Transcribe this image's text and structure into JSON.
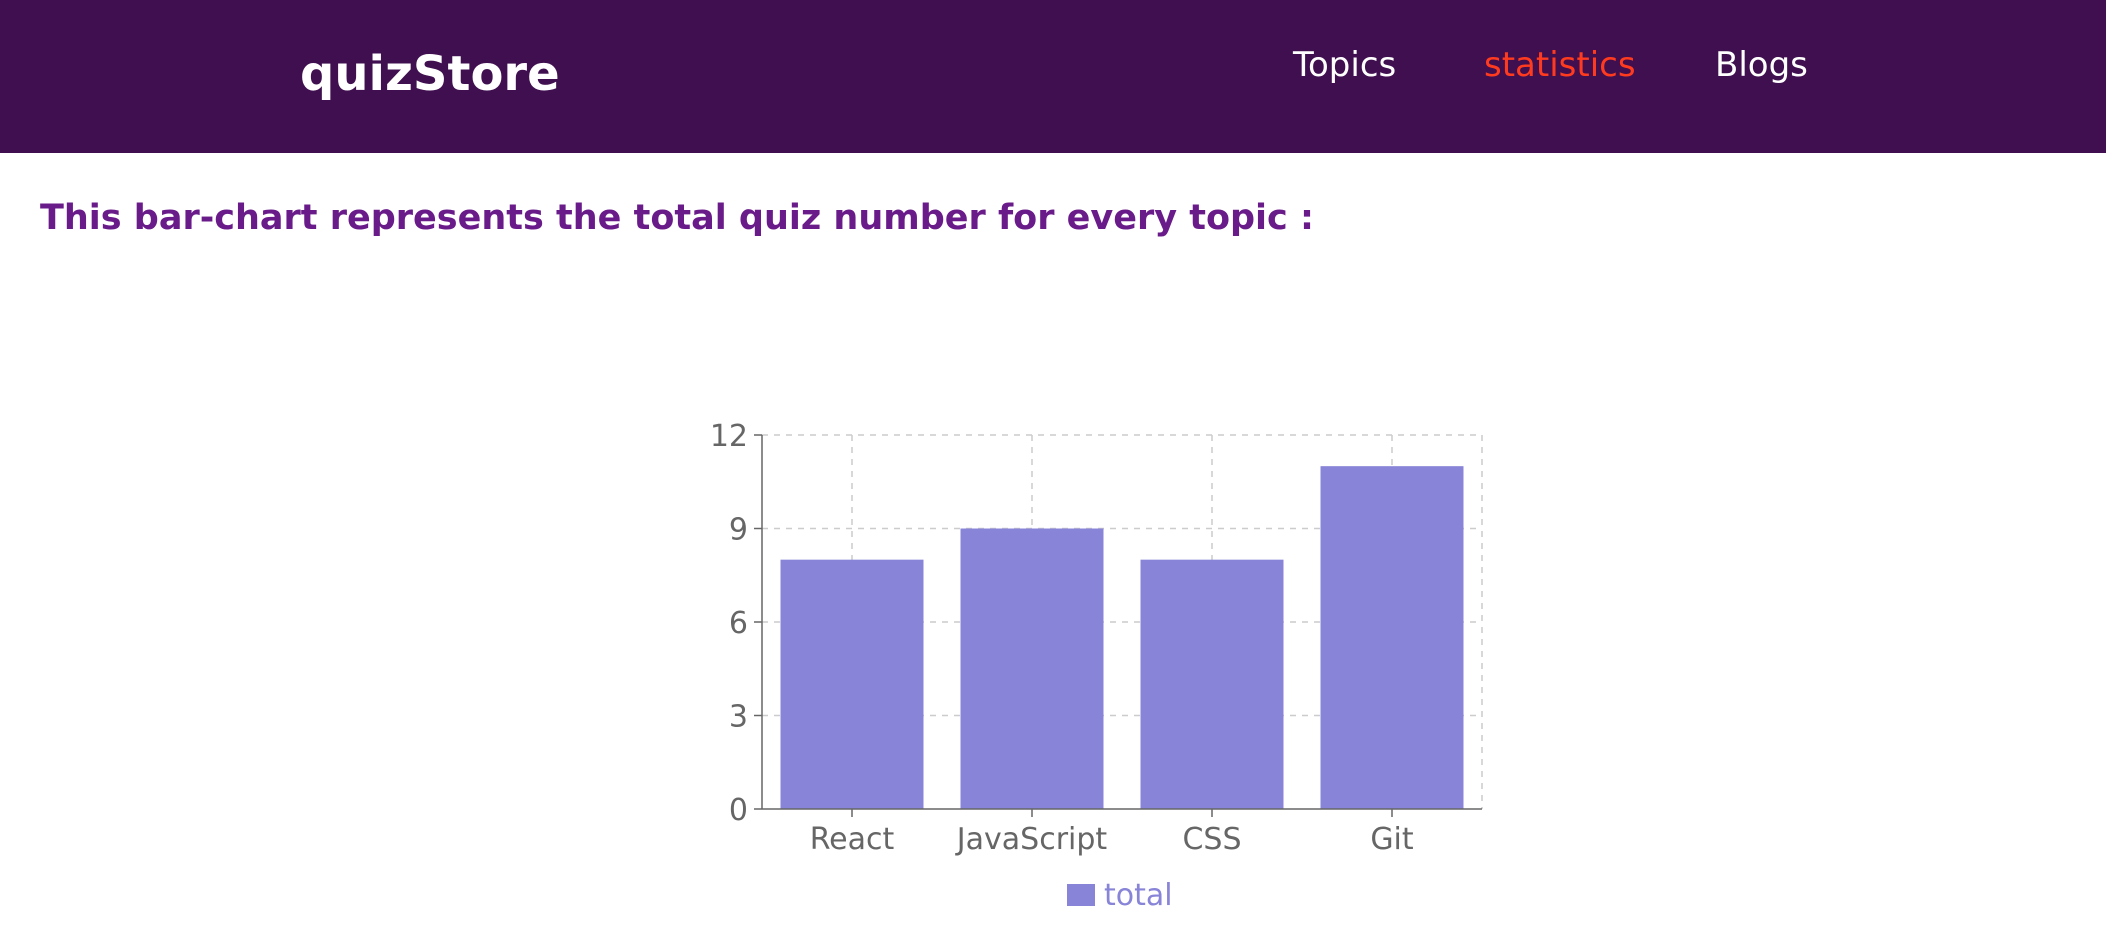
{
  "header": {
    "brand": "quizStore",
    "nav": [
      {
        "label": "Topics",
        "active": false
      },
      {
        "label": "statistics",
        "active": true
      },
      {
        "label": "Blogs",
        "active": false
      }
    ],
    "bg_color": "#3f0f4f",
    "active_color": "#ff3b1f"
  },
  "main": {
    "intro_text": "This bar-chart represents the total quiz number for every topic :"
  },
  "chart_data": {
    "type": "bar",
    "categories": [
      "React",
      "JavaScript",
      "CSS",
      "Git"
    ],
    "series": [
      {
        "name": "total",
        "values": [
          8,
          9,
          8,
          11
        ],
        "color": "#8884d8"
      }
    ],
    "ylim": [
      0,
      12
    ],
    "yticks": [
      0,
      3,
      6,
      9,
      12
    ],
    "grid": true,
    "legend": "bottom-center"
  }
}
